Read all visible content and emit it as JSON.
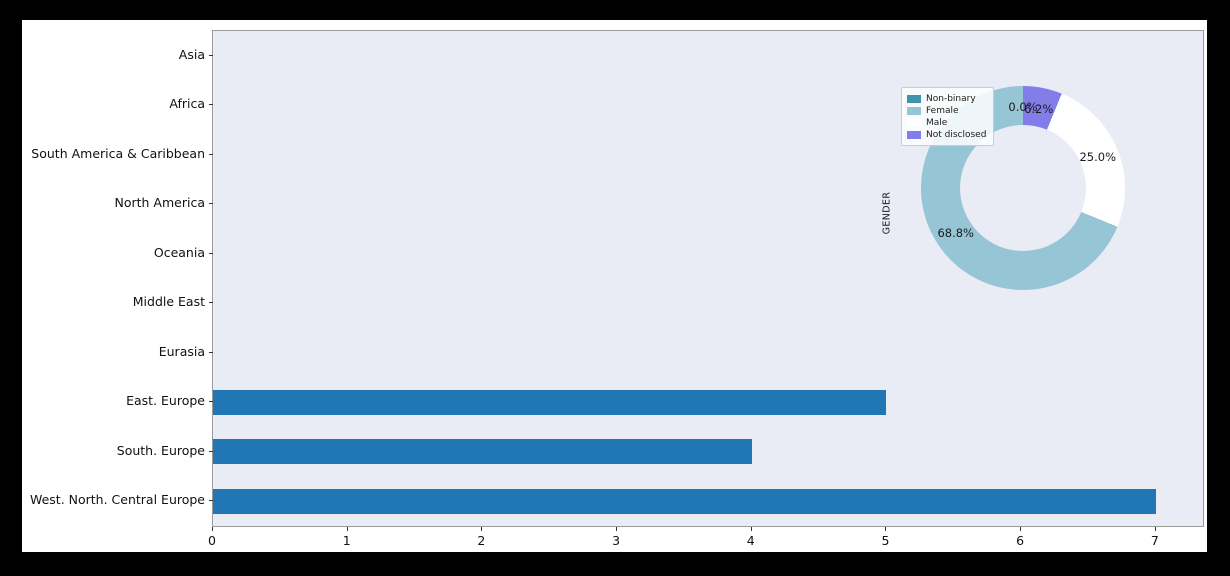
{
  "figure": {
    "background": "#ffffff",
    "frame_background": "#000000"
  },
  "chart_data": [
    {
      "type": "bar",
      "orientation": "horizontal",
      "title": "",
      "xlabel": "",
      "ylabel": "",
      "categories": [
        "Asia",
        "Africa",
        "South America & Caribbean",
        "North America",
        "Oceania",
        "Middle East",
        "Eurasia",
        "East. Europe",
        "South. Europe",
        "West. North. Central Europe"
      ],
      "values": [
        0,
        0,
        0,
        0,
        0,
        0,
        0,
        5,
        4,
        7
      ],
      "xticks": [
        "0",
        "1",
        "2",
        "3",
        "4",
        "5",
        "6",
        "7"
      ],
      "xtick_values": [
        0,
        1,
        2,
        3,
        4,
        5,
        6,
        7
      ],
      "xlim": [
        0,
        7.35
      ],
      "grid": false,
      "bar_color": "#2077b4",
      "plot_background": "#e9ebf5"
    },
    {
      "type": "pie",
      "donut": true,
      "title": "",
      "ylabel": "GENDER",
      "start_angle": 90,
      "counterclock": true,
      "legend_position": "upper left",
      "slices": [
        {
          "label": "Non-binary",
          "value_pct": 0.0,
          "pct_text": "0.0%",
          "color": "#3f93ab"
        },
        {
          "label": "Female",
          "value_pct": 68.8,
          "pct_text": "68.8%",
          "color": "#96c5d5"
        },
        {
          "label": "Male",
          "value_pct": 25.0,
          "pct_text": "25.0%",
          "color": "#ffffff"
        },
        {
          "label": "Not disclosed",
          "value_pct": 6.2,
          "pct_text": "6.2%",
          "color": "#837de9"
        }
      ]
    }
  ]
}
